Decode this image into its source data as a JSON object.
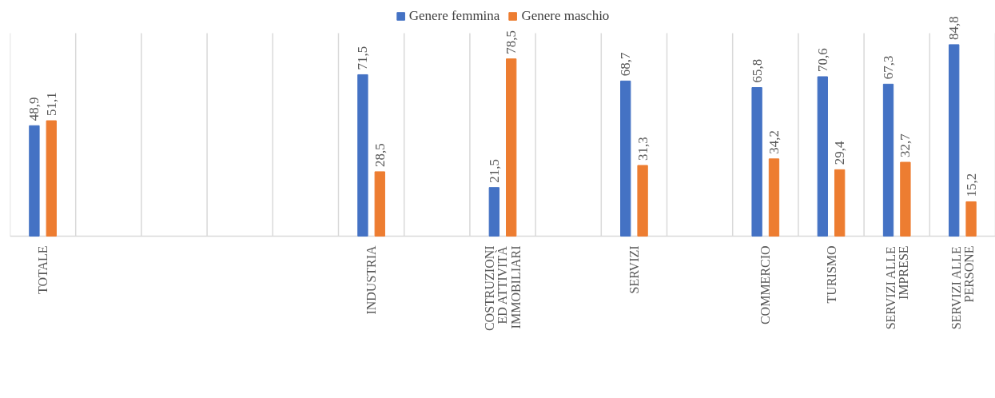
{
  "chart_data": {
    "type": "bar",
    "categories": [
      "TOTALE",
      null,
      null,
      null,
      null,
      "INDUSTRIA",
      null,
      "COSTRUZIONI ED ATTIVITÀ IMMOBILIARI",
      null,
      "SERVIZI",
      null,
      "COMMERCIO",
      "TURISMO",
      "SERVIZI ALLE IMPRESE",
      "SERVIZI ALLE PERSONE"
    ],
    "series": [
      {
        "name": "Genere femmina",
        "color": "#4472c4",
        "values": [
          48.9,
          null,
          null,
          null,
          null,
          71.5,
          null,
          21.5,
          null,
          68.7,
          null,
          65.8,
          70.6,
          67.3,
          84.8
        ],
        "value_labels": [
          "48,9",
          null,
          null,
          null,
          null,
          "71,5",
          null,
          "21,5",
          null,
          "68,7",
          null,
          "65,8",
          "70,6",
          "67,3",
          "84,8"
        ]
      },
      {
        "name": "Genere maschio",
        "color": "#ed7d31",
        "values": [
          51.1,
          null,
          null,
          null,
          null,
          28.5,
          null,
          78.5,
          null,
          31.3,
          null,
          34.2,
          29.4,
          32.7,
          15.2
        ],
        "value_labels": [
          "51,1",
          null,
          null,
          null,
          null,
          "28,5",
          null,
          "78,5",
          null,
          "31,3",
          null,
          "34,2",
          "29,4",
          "32,7",
          "15,2"
        ]
      }
    ],
    "grid": "x",
    "legend": "top"
  }
}
